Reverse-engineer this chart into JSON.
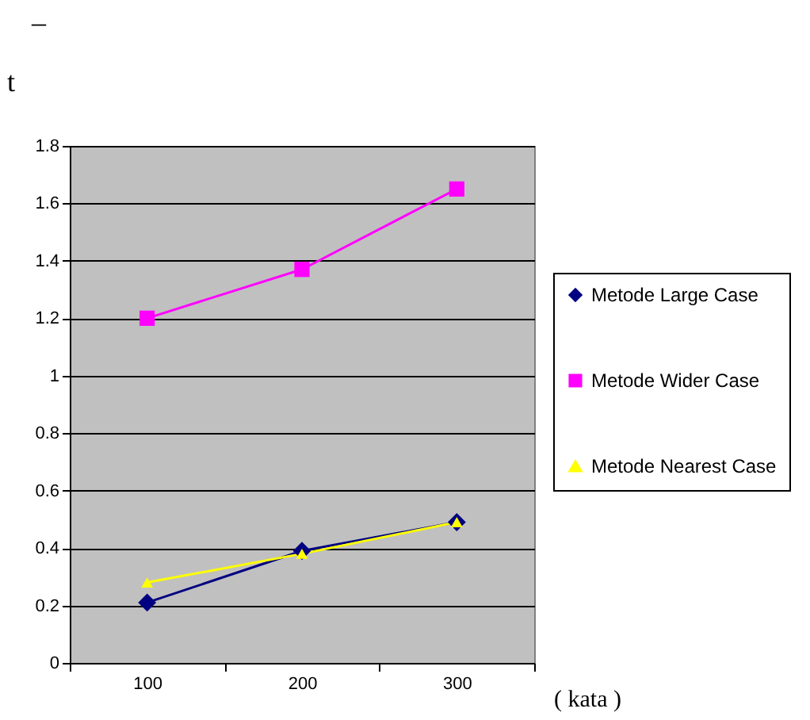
{
  "chart_data": {
    "type": "line",
    "title": "–",
    "ylabel": "t",
    "xlabel": "( kata )",
    "categories": [
      "100",
      "200",
      "300"
    ],
    "series": [
      {
        "name": "Metode Large Case",
        "color": "#000080",
        "marker": "diamond",
        "values": [
          0.21,
          0.39,
          0.49
        ]
      },
      {
        "name": "Metode Wider Case",
        "color": "#ff00ff",
        "marker": "square",
        "values": [
          1.2,
          1.37,
          1.65
        ]
      },
      {
        "name": "Metode Nearest Case",
        "color": "#ffff00",
        "marker": "triangle",
        "values": [
          0.28,
          0.38,
          0.49
        ]
      }
    ],
    "ylim": [
      0,
      1.8
    ],
    "yticks": [
      0,
      0.2,
      0.4,
      0.6,
      0.8,
      1,
      1.2,
      1.4,
      1.6,
      1.8
    ],
    "grid": "y",
    "legend": "right"
  }
}
